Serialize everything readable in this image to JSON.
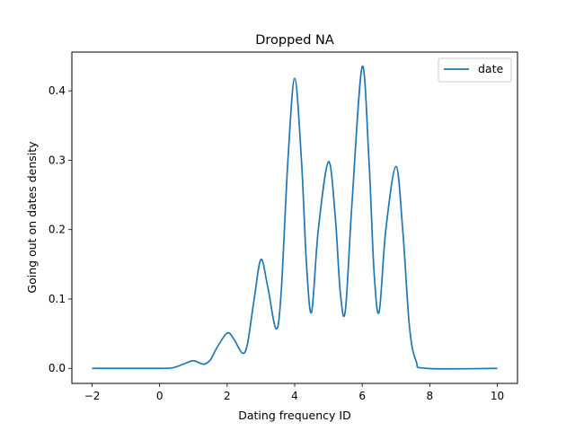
{
  "chart_data": {
    "type": "line",
    "title": "Dropped NA",
    "xlabel": "Dating frequency ID",
    "ylabel": "Going out on dates density",
    "xlim": [
      -2.6,
      10.6
    ],
    "ylim": [
      -0.0217,
      0.4559
    ],
    "x_ticks": [
      -2,
      0,
      2,
      4,
      6,
      8,
      10
    ],
    "y_ticks": [
      0.0,
      0.1,
      0.2,
      0.3,
      0.4
    ],
    "x_tick_labels": [
      "−2",
      "0",
      "2",
      "4",
      "6",
      "8",
      "10"
    ],
    "y_tick_labels": [
      "0.0",
      "0.1",
      "0.2",
      "0.3",
      "0.4"
    ],
    "grid": false,
    "legend": {
      "position": "top-right",
      "entries": [
        "date"
      ]
    },
    "series": [
      {
        "name": "date",
        "color": "#1f77b4",
        "points": [
          [
            -2.0,
            0.0
          ],
          [
            0.0,
            0.0
          ],
          [
            0.4,
            0.001
          ],
          [
            0.7,
            0.006
          ],
          [
            1.0,
            0.011
          ],
          [
            1.3,
            0.006
          ],
          [
            1.5,
            0.012
          ],
          [
            1.7,
            0.03
          ],
          [
            2.0,
            0.051
          ],
          [
            2.2,
            0.042
          ],
          [
            2.45,
            0.022
          ],
          [
            2.6,
            0.035
          ],
          [
            2.8,
            0.1
          ],
          [
            3.0,
            0.157
          ],
          [
            3.2,
            0.118
          ],
          [
            3.45,
            0.057
          ],
          [
            3.6,
            0.11
          ],
          [
            3.8,
            0.3
          ],
          [
            4.0,
            0.418
          ],
          [
            4.2,
            0.3
          ],
          [
            4.35,
            0.15
          ],
          [
            4.5,
            0.081
          ],
          [
            4.7,
            0.2
          ],
          [
            5.0,
            0.298
          ],
          [
            5.2,
            0.22
          ],
          [
            5.35,
            0.11
          ],
          [
            5.5,
            0.083
          ],
          [
            5.7,
            0.24
          ],
          [
            6.0,
            0.435
          ],
          [
            6.2,
            0.3
          ],
          [
            6.35,
            0.14
          ],
          [
            6.5,
            0.081
          ],
          [
            6.7,
            0.2
          ],
          [
            7.0,
            0.291
          ],
          [
            7.2,
            0.2
          ],
          [
            7.4,
            0.06
          ],
          [
            7.6,
            0.01
          ],
          [
            7.9,
            0.0
          ],
          [
            10.0,
            0.0
          ]
        ]
      }
    ]
  }
}
